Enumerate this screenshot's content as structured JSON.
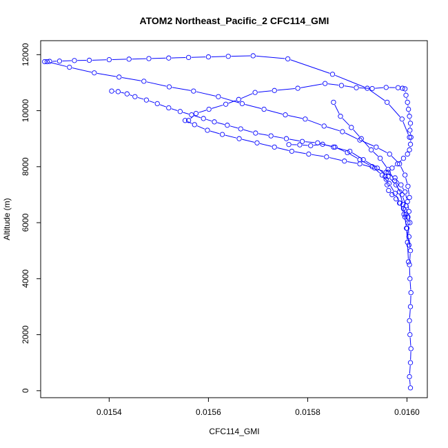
{
  "chart_data": {
    "type": "line",
    "title": "ATOM2 Northeast_Pacific_2 CFC114_GMI",
    "xlabel": "CFC114_GMI",
    "ylabel": "Altitude (m)",
    "xlim": [
      0.015262,
      0.016041
    ],
    "ylim": [
      -250,
      12500
    ],
    "xticks": [
      0.0154,
      0.0156,
      0.0158,
      0.016
    ],
    "xtick_labels": [
      "0.0154",
      "0.0156",
      "0.0158",
      "0.0160"
    ],
    "yticks": [
      0,
      2000,
      4000,
      6000,
      8000,
      10000,
      12000
    ],
    "ytick_labels": [
      "0",
      "2000",
      "4000",
      "6000",
      "8000",
      "10000",
      "12000"
    ],
    "series_color": "#0000ff",
    "marker": "open-circle",
    "grid": false,
    "series": [
      {
        "x": [
          0.016007,
          0.016005,
          0.016007,
          0.016008,
          0.016006,
          0.016005,
          0.016007,
          0.016008,
          0.016006,
          0.016005,
          0.016007,
          0.016004,
          0.016002,
          0.015998,
          0.015993,
          0.015985,
          0.015978,
          0.01597,
          0.015963,
          0.01596,
          0.015958,
          0.015956,
          0.015962,
          0.01597,
          0.015981,
          0.015993,
          0.016001,
          0.016005,
          0.016007,
          0.016008,
          0.016006,
          0.016007,
          0.016005,
          0.016003,
          0.016001,
          0.015998,
          0.015996,
          0.015991,
          0.015982,
          0.015958,
          0.01593,
          0.015898,
          0.015868,
          0.015835,
          0.01578,
          0.015733,
          0.015694,
          0.015661,
          0.015635,
          0.015601,
          0.015575,
          0.01556
        ],
        "y": [
          100,
          500,
          1000,
          1500,
          2000,
          2500,
          3000,
          3500,
          4000,
          4500,
          5000,
          5500,
          6000,
          6300,
          6500,
          6700,
          6850,
          7000,
          7150,
          7350,
          7550,
          7650,
          7800,
          7950,
          8100,
          8300,
          8450,
          8600,
          8800,
          9050,
          9300,
          9550,
          9800,
          10050,
          10300,
          10550,
          10780,
          10800,
          10820,
          10830,
          10790,
          10820,
          10900,
          10970,
          10800,
          10720,
          10650,
          10400,
          10230,
          10050,
          9900,
          9650
        ]
      },
      {
        "x": [
          0.016006,
          0.016004,
          0.016001,
          0.015996,
          0.015988,
          0.015976,
          0.015958,
          0.015935,
          0.015905,
          0.015874,
          0.015838,
          0.015802,
          0.015768,
          0.015733,
          0.015698,
          0.015662,
          0.015628,
          0.015598,
          0.015572,
          0.015553
        ],
        "y": [
          6000,
          6400,
          6750,
          7100,
          7350,
          7600,
          7800,
          7950,
          8100,
          8200,
          8350,
          8450,
          8550,
          8700,
          8850,
          9000,
          9150,
          9300,
          9500,
          9650
        ]
      },
      {
        "x": [
          0.016002,
          0.015998,
          0.01599,
          0.015978,
          0.015962,
          0.01594,
          0.015912,
          0.015885,
          0.015852,
          0.01582,
          0.015789,
          0.015757,
          0.015726,
          0.015695,
          0.015665,
          0.015638,
          0.015612,
          0.01559,
          0.015566,
          0.015543,
          0.01552,
          0.015497,
          0.015475,
          0.015452,
          0.015436,
          0.015418,
          0.015405
        ],
        "y": [
          6200,
          6600,
          7000,
          7350,
          7650,
          7950,
          8250,
          8550,
          8700,
          8850,
          8900,
          9000,
          9100,
          9200,
          9350,
          9480,
          9600,
          9720,
          9850,
          9970,
          10100,
          10250,
          10380,
          10500,
          10600,
          10680,
          10700
        ]
      },
      {
        "x": [
          0.016005,
          0.016002,
          0.015996,
          0.015985,
          0.015965,
          0.015938,
          0.015905,
          0.01587,
          0.015833,
          0.015795,
          0.015755,
          0.015712,
          0.015668,
          0.01562,
          0.01557,
          0.015521,
          0.01547,
          0.01542,
          0.01537,
          0.01532,
          0.015275
        ],
        "y": [
          6900,
          7300,
          7700,
          8100,
          8450,
          8700,
          8950,
          9250,
          9450,
          9700,
          9850,
          10050,
          10250,
          10500,
          10700,
          10850,
          11050,
          11200,
          11350,
          11550,
          11750
        ]
      },
      {
        "x": [
          0.01527,
          0.01528,
          0.0153,
          0.01533,
          0.01536,
          0.0154,
          0.01544,
          0.01548,
          0.01552,
          0.01556,
          0.0156,
          0.01564,
          0.01569,
          0.01576,
          0.01585,
          0.01592,
          0.01596,
          0.01599,
          0.016005
        ],
        "y": [
          11750,
          11760,
          11770,
          11790,
          11800,
          11820,
          11840,
          11860,
          11880,
          11900,
          11920,
          11940,
          11960,
          11850,
          11300,
          10800,
          10300,
          9700,
          9050
        ]
      },
      {
        "x": [
          0.016004,
          0.016,
          0.015994,
          0.015986,
          0.015976,
          0.015964,
          0.01595,
          0.01593,
          0.015905,
          0.01588,
          0.015855,
          0.01583,
          0.015806,
          0.015784,
          0.015762
        ],
        "y": [
          5200,
          5800,
          6300,
          6700,
          7050,
          7400,
          7700,
          8000,
          8250,
          8500,
          8700,
          8800,
          8750,
          8780,
          8790
        ]
      },
      {
        "x": [
          0.016003,
          0.016001,
          0.015999,
          0.015996,
          0.015992,
          0.015985,
          0.015975,
          0.015962,
          0.015946,
          0.015928,
          0.015908,
          0.015888,
          0.015866,
          0.015852
        ],
        "y": [
          4600,
          5300,
          5800,
          6200,
          6650,
          7100,
          7500,
          7900,
          8300,
          8600,
          9000,
          9400,
          9800,
          10300
        ]
      }
    ]
  }
}
